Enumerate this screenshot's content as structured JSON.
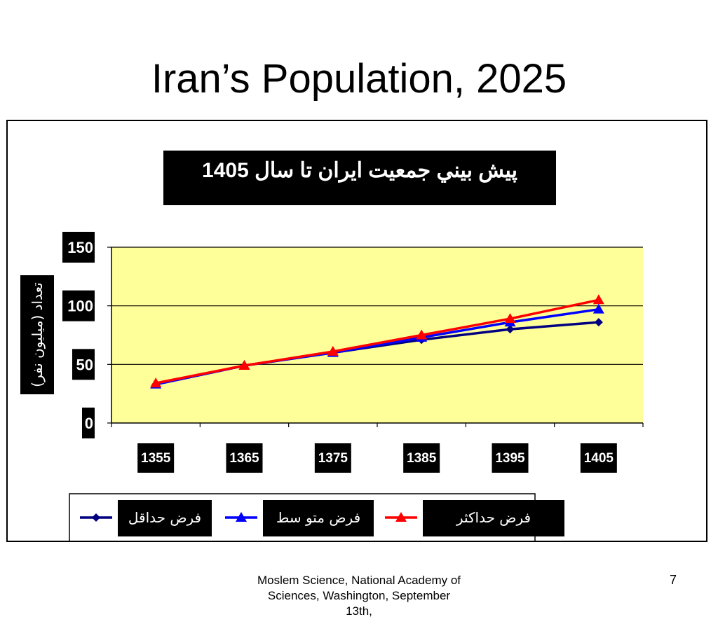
{
  "slide": {
    "title": "Iran’s Population, 2025",
    "footer": "Moslem Science, National Academy of Sciences, Washington, September 13th,",
    "page_number": "7"
  },
  "chart_data": {
    "type": "line",
    "title": "پيش بيني جمعيت ايران تا سال 1405",
    "xlabel": "",
    "ylabel": "تعداد (ميليون نفر)",
    "categories": [
      "1355",
      "1365",
      "1375",
      "1385",
      "1395",
      "1405"
    ],
    "ylim": [
      0,
      150
    ],
    "yticks": [
      "0",
      "50",
      "100",
      "150"
    ],
    "grid": true,
    "legend_position": "bottom",
    "plot_background": "#ffff99",
    "series": [
      {
        "name": "فرض حداقل",
        "color": "#000080",
        "marker": "diamond",
        "values": [
          33,
          49,
          60,
          71,
          80,
          86
        ]
      },
      {
        "name": "فرض متو سط",
        "color": "#0000ff",
        "marker": "triangle",
        "values": [
          33,
          49,
          60,
          73,
          86,
          97
        ]
      },
      {
        "name": "فرض حداكثر",
        "color": "#ff0000",
        "marker": "triangle",
        "values": [
          34,
          49,
          61,
          75,
          89,
          105
        ]
      }
    ]
  }
}
